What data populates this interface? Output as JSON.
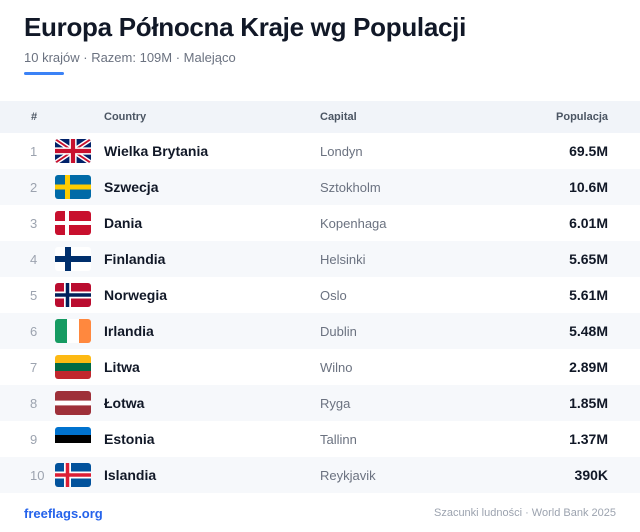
{
  "header": {
    "title": "Europa Północna Kraje wg Populacji",
    "subtitle": "10 krajów · Razem: 109M · Malejąco",
    "accent_color": "#3b82f6"
  },
  "table": {
    "columns": {
      "num": "#",
      "country": "Country",
      "capital": "Capital",
      "population": "Populacja"
    },
    "rows": [
      {
        "num": "1",
        "flag": "uk-flag-icon",
        "country": "Wielka Brytania",
        "capital": "Londyn",
        "population": "69.5M"
      },
      {
        "num": "2",
        "flag": "sweden-flag-icon",
        "country": "Szwecja",
        "capital": "Sztokholm",
        "population": "10.6M"
      },
      {
        "num": "3",
        "flag": "denmark-flag-icon",
        "country": "Dania",
        "capital": "Kopenhaga",
        "population": "6.01M"
      },
      {
        "num": "4",
        "flag": "finland-flag-icon",
        "country": "Finlandia",
        "capital": "Helsinki",
        "population": "5.65M"
      },
      {
        "num": "5",
        "flag": "norway-flag-icon",
        "country": "Norwegia",
        "capital": "Oslo",
        "population": "5.61M"
      },
      {
        "num": "6",
        "flag": "ireland-flag-icon",
        "country": "Irlandia",
        "capital": "Dublin",
        "population": "5.48M"
      },
      {
        "num": "7",
        "flag": "lithuania-flag-icon",
        "country": "Litwa",
        "capital": "Wilno",
        "population": "2.89M"
      },
      {
        "num": "8",
        "flag": "latvia-flag-icon",
        "country": "Łotwa",
        "capital": "Ryga",
        "population": "1.85M"
      },
      {
        "num": "9",
        "flag": "estonia-flag-icon",
        "country": "Estonia",
        "capital": "Tallinn",
        "population": "1.37M"
      },
      {
        "num": "10",
        "flag": "iceland-flag-icon",
        "country": "Islandia",
        "capital": "Reykjavik",
        "population": "390K"
      }
    ]
  },
  "footer": {
    "link": "freeflags.org",
    "note": "Szacunki ludności · World Bank 2025",
    "link_color": "#2563eb"
  }
}
